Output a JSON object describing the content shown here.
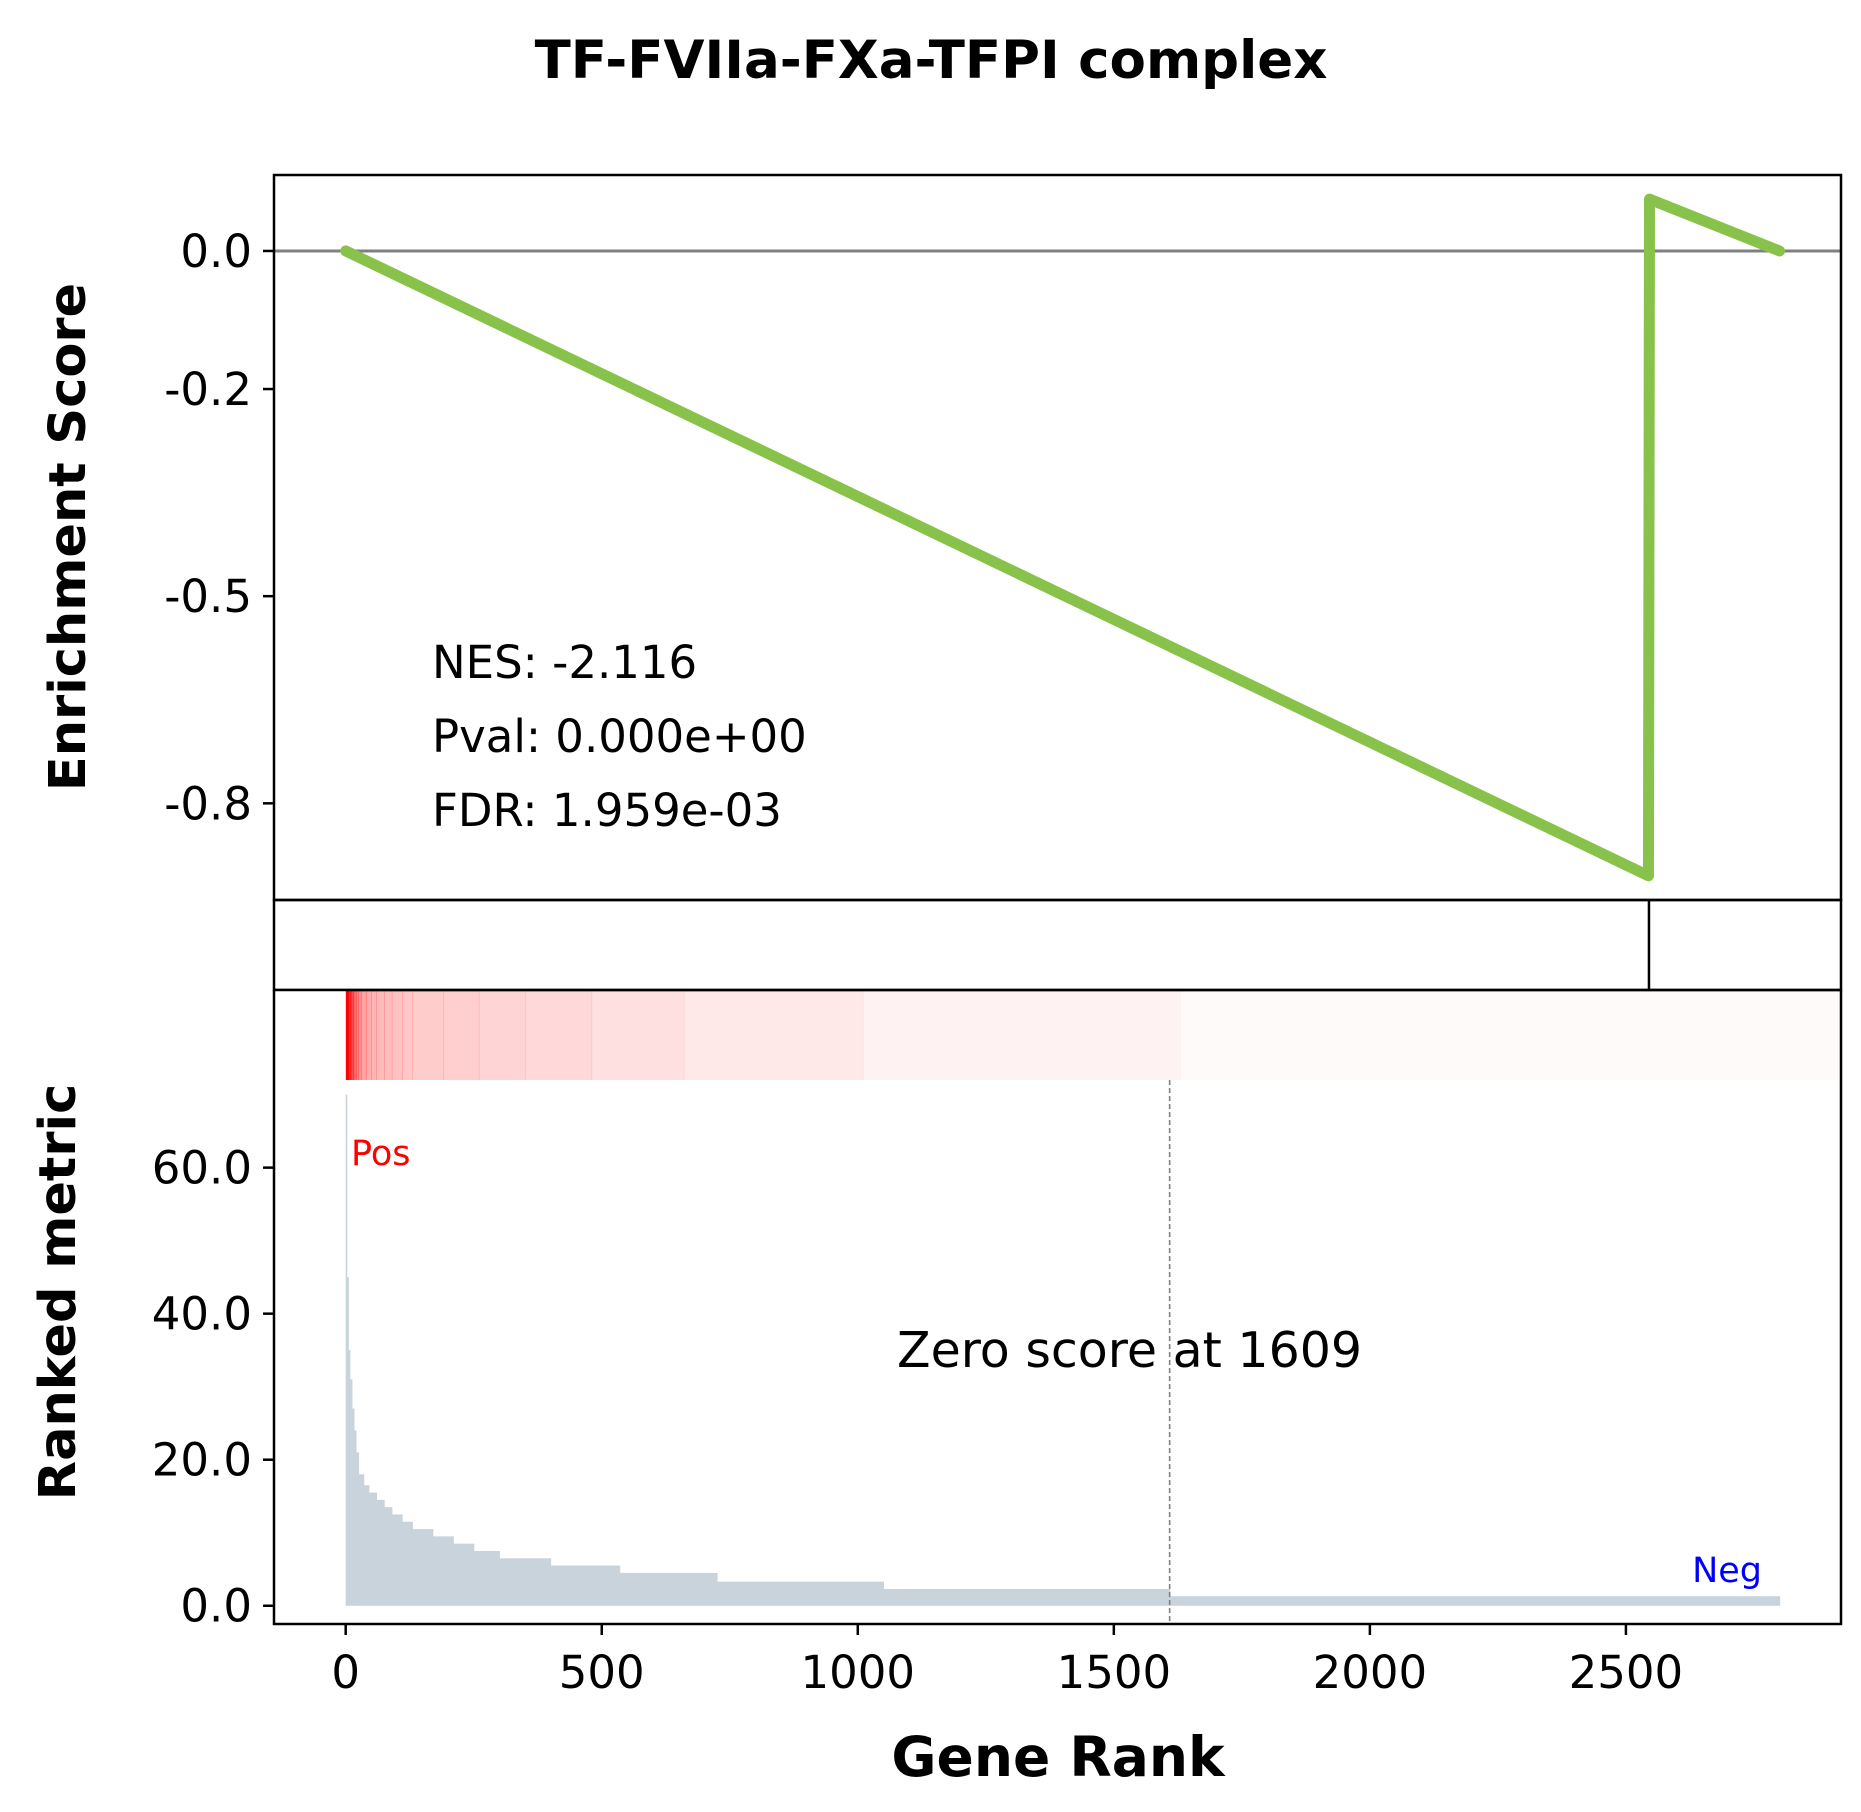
{
  "chart_data": {
    "type": "line",
    "title": "TF-FVIIa-FXa-TFPI complex",
    "xlabel": "Gene Rank",
    "x_ticks": [
      0,
      500,
      1000,
      1500,
      2000,
      2500
    ],
    "x_tick_labels": [
      "0",
      "500",
      "1000",
      "1500",
      "2000",
      "2500"
    ],
    "xlim": [
      -140,
      2920
    ],
    "es_panel": {
      "ylabel": "Enrichment Score",
      "ylim": [
        -0.94,
        0.11
      ],
      "y_ticks": [
        0.0,
        -0.2,
        -0.5,
        -0.8
      ],
      "y_tick_labels": [
        "0.0",
        "-0.2",
        "-0.5",
        "-0.8"
      ],
      "zero_line": true,
      "series": {
        "color": "#88c24a",
        "x": [
          0,
          2544,
          2546,
          2800
        ],
        "y": [
          0.0,
          -0.905,
          0.075,
          0.0
        ]
      },
      "stats": [
        "NES: -2.116",
        "Pval: 0.000e+00",
        "FDR: 1.959e-03"
      ]
    },
    "hits_panel": {
      "hit_ranks": [
        2545
      ]
    },
    "heatmap_panel": {
      "color": "#ff0000",
      "segment_edges": [
        0,
        5,
        10,
        15,
        20,
        25,
        30,
        40,
        50,
        60,
        75,
        90,
        110,
        130,
        190,
        260,
        350,
        480,
        660,
        1010,
        1630,
        2920
      ],
      "segment_alpha": [
        1.0,
        0.85,
        0.7,
        0.58,
        0.48,
        0.42,
        0.36,
        0.32,
        0.29,
        0.27,
        0.26,
        0.24,
        0.22,
        0.2,
        0.19,
        0.17,
        0.15,
        0.12,
        0.09,
        0.05,
        0.02
      ]
    },
    "metric_panel": {
      "ylabel": "Ranked metric",
      "ylim": [
        -2.5,
        72
      ],
      "y_ticks": [
        0.0,
        20.0,
        40.0,
        60.0
      ],
      "y_tick_labels": [
        "0.0",
        "20.0",
        "40.0",
        "60.0"
      ],
      "bar_color": "#c8d3dc",
      "steps": [
        {
          "start": 0,
          "end": 2,
          "value": 70
        },
        {
          "start": 2,
          "end": 5,
          "value": 45
        },
        {
          "start": 5,
          "end": 8,
          "value": 35
        },
        {
          "start": 8,
          "end": 12,
          "value": 31
        },
        {
          "start": 12,
          "end": 16,
          "value": 27
        },
        {
          "start": 16,
          "end": 20,
          "value": 24
        },
        {
          "start": 20,
          "end": 25,
          "value": 21
        },
        {
          "start": 25,
          "end": 35,
          "value": 18
        },
        {
          "start": 35,
          "end": 45,
          "value": 16.5
        },
        {
          "start": 45,
          "end": 60,
          "value": 15.5
        },
        {
          "start": 60,
          "end": 75,
          "value": 14.5
        },
        {
          "start": 75,
          "end": 90,
          "value": 13.5
        },
        {
          "start": 90,
          "end": 110,
          "value": 12.5
        },
        {
          "start": 110,
          "end": 130,
          "value": 11.5
        },
        {
          "start": 130,
          "end": 170,
          "value": 10.5
        },
        {
          "start": 170,
          "end": 210,
          "value": 9.5
        },
        {
          "start": 210,
          "end": 250,
          "value": 8.5
        },
        {
          "start": 250,
          "end": 300,
          "value": 7.5
        },
        {
          "start": 300,
          "end": 400,
          "value": 6.5
        },
        {
          "start": 400,
          "end": 535,
          "value": 5.5
        },
        {
          "start": 535,
          "end": 725,
          "value": 4.5
        },
        {
          "start": 725,
          "end": 1050,
          "value": 3.3
        },
        {
          "start": 1050,
          "end": 1609,
          "value": 2.3
        },
        {
          "start": 1609,
          "end": 2800,
          "value": 1.3
        }
      ],
      "zero_cross": 1609,
      "zero_label": "Zero score at 1609",
      "pos_label": "Pos",
      "neg_label": "Neg",
      "pos_color": "#ff0000",
      "neg_color": "#0000ff"
    }
  }
}
